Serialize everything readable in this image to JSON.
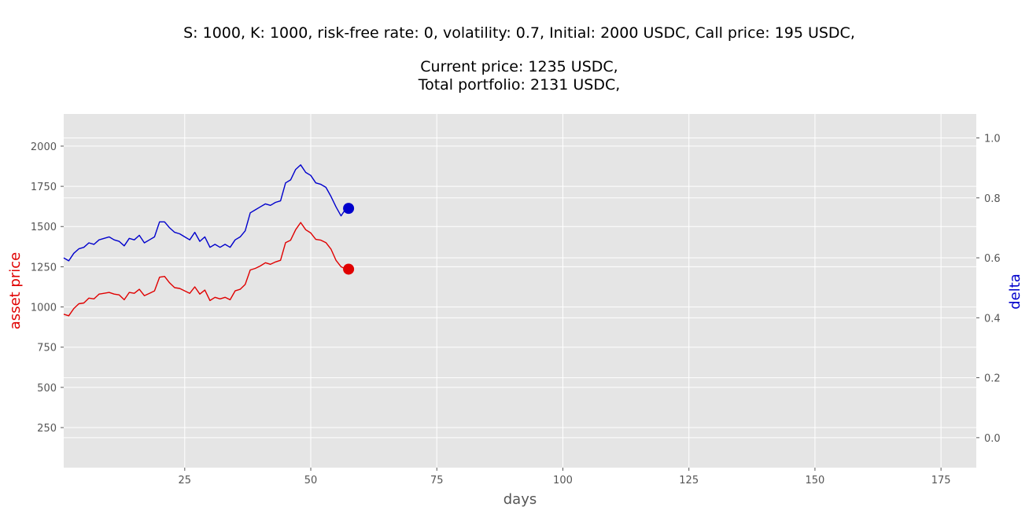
{
  "title_lines": [
    "S: 1000, K: 1000, risk-free rate: 0, volatility: 0.7,  Initial: 2000 USDC, Call price: 195 USDC,",
    "Current price: 1235 USDC,",
    "Total portfolio: 2131 USDC,"
  ],
  "chart_data": {
    "type": "line",
    "xlabel": "days",
    "ylabel_left": "asset price",
    "ylabel_right": "delta",
    "xlim": [
      1,
      182
    ],
    "ylim_left": [
      1,
      2200
    ],
    "ylim_right": [
      -0.1,
      1.08
    ],
    "xticks": [
      25,
      50,
      75,
      100,
      125,
      150,
      175
    ],
    "yticks_left": [
      250,
      500,
      750,
      1000,
      1250,
      1500,
      1750,
      2000
    ],
    "yticks_right": [
      0.0,
      0.2,
      0.4,
      0.6,
      0.8,
      1.0
    ],
    "ytick_labels_right": [
      "0.0",
      "0.2",
      "0.4",
      "0.6",
      "0.8",
      "1.0"
    ],
    "grid": true,
    "colors": {
      "price": "#e00000",
      "delta": "#0000cc",
      "background": "#e5e5e5",
      "grid": "#ffffff"
    },
    "series": [
      {
        "axis": "left",
        "x": [
          1,
          2,
          3,
          4,
          5,
          6,
          7,
          8,
          9,
          10,
          11,
          12,
          13,
          14,
          15,
          16,
          17,
          18,
          19,
          20,
          21,
          22,
          23,
          24,
          25,
          26,
          27,
          28,
          29,
          30,
          31,
          32,
          33,
          34,
          35,
          36,
          37,
          38,
          39,
          40,
          41,
          42,
          43,
          44,
          45,
          46,
          47,
          48,
          49,
          50,
          51,
          52,
          53,
          54,
          55,
          56,
          57
        ],
        "values": [
          955,
          945,
          990,
          1020,
          1025,
          1055,
          1050,
          1080,
          1085,
          1090,
          1080,
          1075,
          1045,
          1090,
          1085,
          1110,
          1070,
          1085,
          1100,
          1185,
          1190,
          1150,
          1120,
          1115,
          1100,
          1085,
          1125,
          1080,
          1105,
          1040,
          1060,
          1050,
          1060,
          1045,
          1100,
          1110,
          1140,
          1230,
          1240,
          1255,
          1275,
          1265,
          1280,
          1290,
          1400,
          1415,
          1480,
          1525,
          1480,
          1460,
          1420,
          1415,
          1400,
          1360,
          1290,
          1250,
          1235
        ]
      },
      {
        "axis": "right",
        "x": [
          1,
          2,
          3,
          4,
          5,
          6,
          7,
          8,
          9,
          10,
          11,
          12,
          13,
          14,
          15,
          16,
          17,
          18,
          19,
          20,
          21,
          22,
          23,
          24,
          25,
          26,
          27,
          28,
          29,
          30,
          31,
          32,
          33,
          34,
          35,
          36,
          37,
          38,
          39,
          40,
          41,
          42,
          43,
          44,
          45,
          46,
          47,
          48,
          49,
          50,
          51,
          52,
          53,
          54,
          55,
          56,
          57
        ],
        "values": [
          0.6,
          0.59,
          0.615,
          0.63,
          0.635,
          0.65,
          0.645,
          0.66,
          0.665,
          0.67,
          0.66,
          0.655,
          0.64,
          0.665,
          0.66,
          0.675,
          0.65,
          0.66,
          0.67,
          0.72,
          0.72,
          0.7,
          0.685,
          0.68,
          0.67,
          0.66,
          0.685,
          0.655,
          0.67,
          0.635,
          0.645,
          0.635,
          0.645,
          0.635,
          0.66,
          0.67,
          0.69,
          0.75,
          0.76,
          0.77,
          0.78,
          0.775,
          0.785,
          0.79,
          0.85,
          0.86,
          0.895,
          0.91,
          0.885,
          0.875,
          0.85,
          0.845,
          0.835,
          0.805,
          0.77,
          0.74,
          0.765
        ]
      }
    ],
    "markers": [
      {
        "axis": "left",
        "x": 57.5,
        "y": 1235
      },
      {
        "axis": "right",
        "x": 57.5,
        "y": 0.765
      }
    ]
  }
}
